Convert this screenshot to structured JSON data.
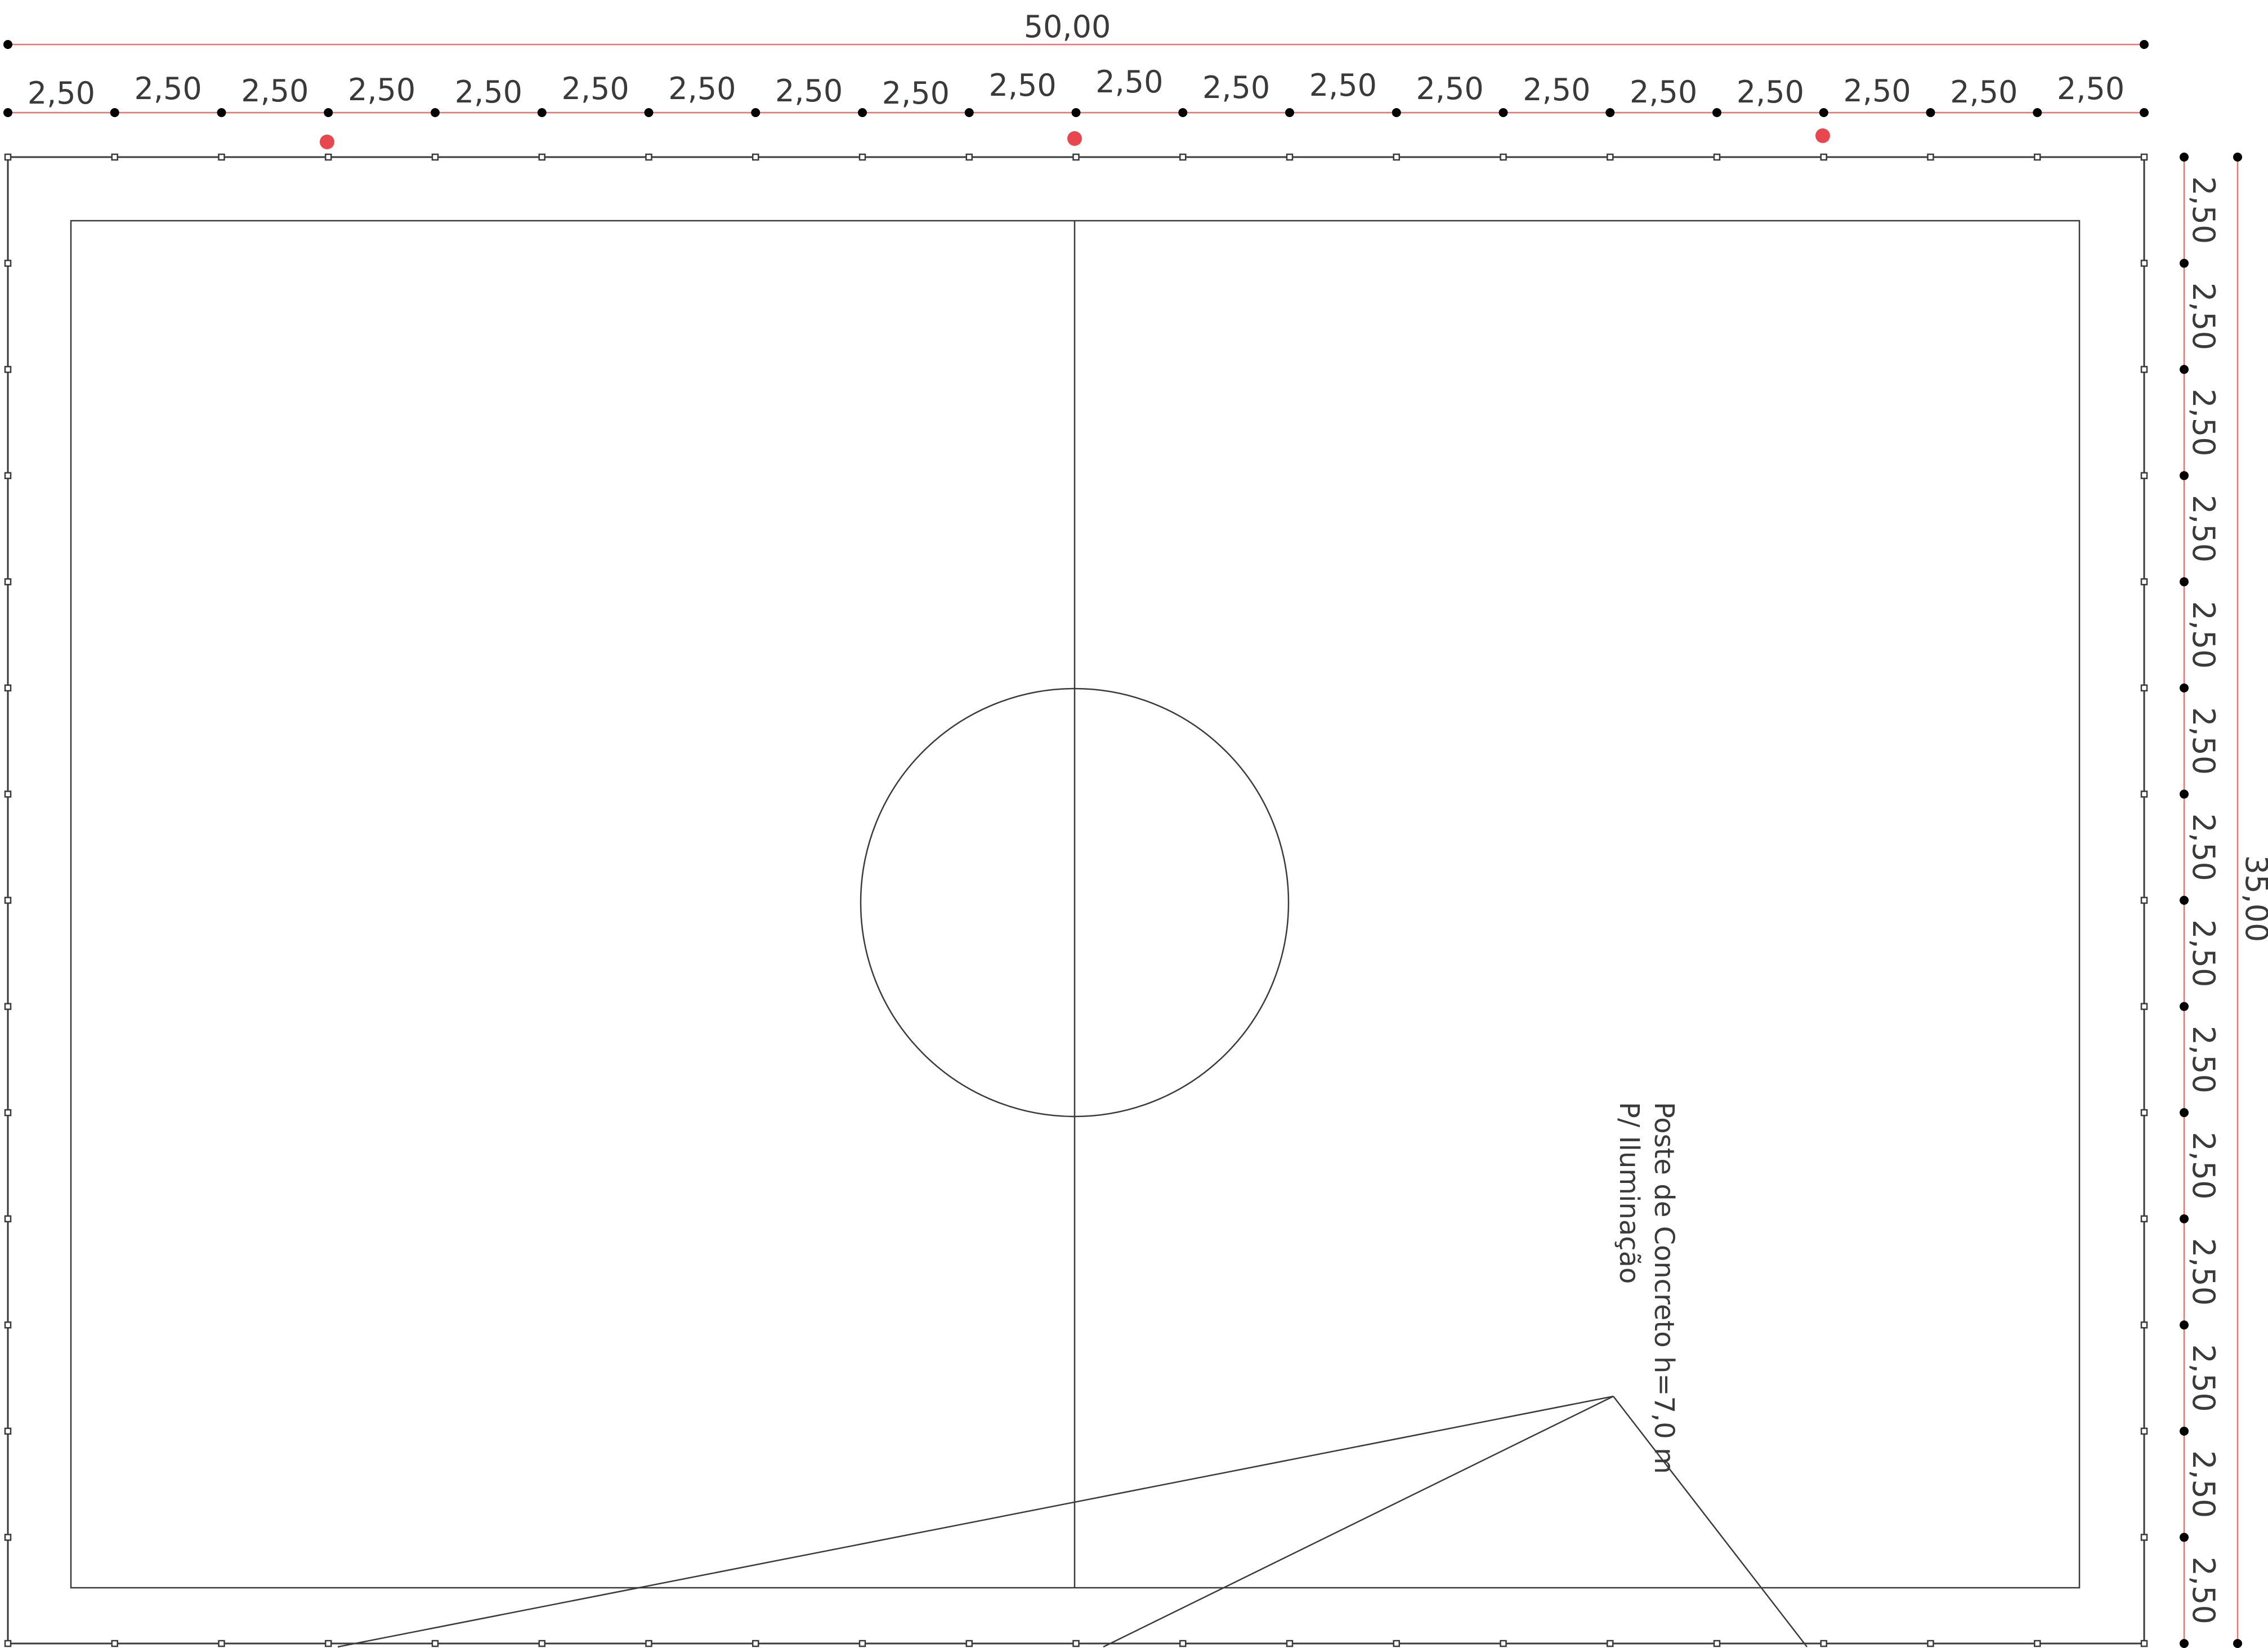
{
  "drawing": {
    "colors": {
      "background": "#ffffff",
      "outline": "#3a3a3a",
      "dimension_line": "#f07070",
      "dimension_point": "#000000",
      "light_pole": "#e8474f",
      "text": "#3a3a3a"
    },
    "overall_width_label": "50,00",
    "overall_height_label": "35,00",
    "width_segments": [
      "2,50",
      "2,50",
      "2,50",
      "2,50",
      "2,50",
      "2,50",
      "2,50",
      "2,50",
      "2,50",
      "2,50",
      "2,50",
      "2,50",
      "2,50",
      "2,50",
      "2,50",
      "2,50",
      "2,50",
      "2,50",
      "2,50",
      "2,50"
    ],
    "height_segments": [
      "2,50",
      "2,50",
      "2,50",
      "2,50",
      "2,50",
      "2,50",
      "2,50",
      "2,50",
      "2,50",
      "2,50",
      "2,50",
      "2,50",
      "2,50",
      "2,50"
    ],
    "light_pole_count": 3,
    "annotation": {
      "line1": "Poste de Concreto h=7,0 m",
      "line2": "P/ Iluminação"
    }
  }
}
